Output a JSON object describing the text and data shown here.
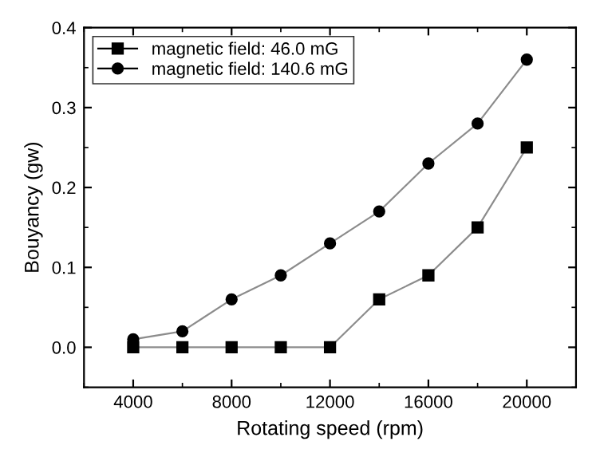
{
  "chart_data": {
    "type": "line",
    "xlabel": "Rotating speed (rpm)",
    "ylabel": "Bouyancy (gw)",
    "x": [
      4000,
      6000,
      8000,
      10000,
      12000,
      14000,
      16000,
      18000,
      20000
    ],
    "series": [
      {
        "name": "magnetic field: 46.0 mG",
        "color": "#000000",
        "marker": "square",
        "values": [
          0,
          0,
          0,
          0,
          0,
          0.06,
          0.09,
          0.15,
          0.25
        ]
      },
      {
        "name": "magnetic field: 140.6 mG",
        "color": "#000000",
        "marker": "circle",
        "values": [
          0.01,
          0.02,
          0.06,
          0.09,
          0.13,
          0.17,
          0.23,
          0.28,
          0.36
        ]
      }
    ],
    "xlim": [
      2000,
      22000
    ],
    "xticks": [
      4000,
      8000,
      12000,
      16000,
      20000
    ],
    "ylim": [
      -0.05,
      0.4
    ],
    "yticks": [
      {
        "value": 0,
        "label": "0.0"
      },
      0.1,
      0.2,
      0.3,
      0.4
    ],
    "grid": false,
    "legend": "top left",
    "line_style": "solid"
  }
}
